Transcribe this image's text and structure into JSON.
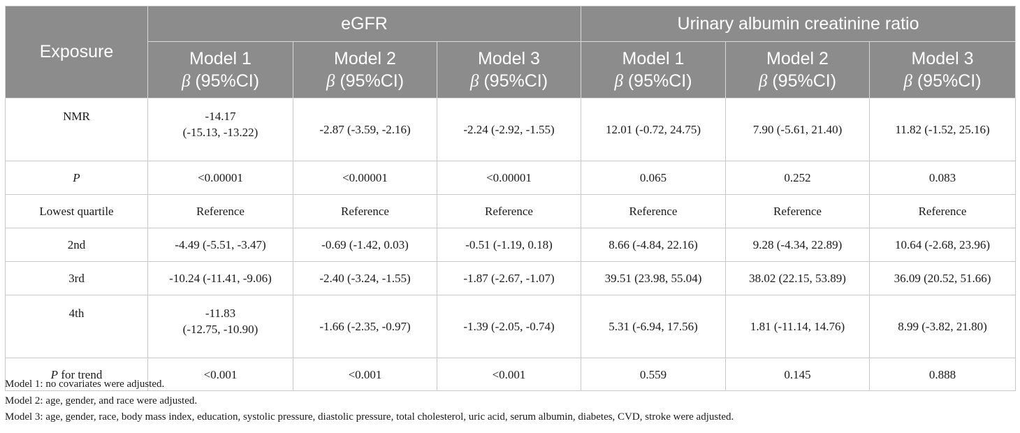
{
  "header": {
    "exposure_label": "Exposure",
    "groups": [
      "eGFR",
      "Urinary albumin creatinine ratio"
    ],
    "models": [
      {
        "name": "Model 1",
        "beta": "β",
        "ci": " (95%CI)"
      },
      {
        "name": "Model 2",
        "beta": "β",
        "ci": " (95%CI)"
      },
      {
        "name": "Model 3",
        "beta": "β",
        "ci": " (95%CI)"
      },
      {
        "name": "Model 1",
        "beta": "β",
        "ci": " (95%CI)"
      },
      {
        "name": "Model 2",
        "beta": "β",
        "ci": " (95%CI)"
      },
      {
        "name": "Model 3",
        "beta": "β",
        "ci": " (95%CI)"
      }
    ]
  },
  "rows": [
    {
      "label": "NMR",
      "cells": [
        "-14.17",
        "-2.87 (-3.59, -2.16)",
        "-2.24 (-2.92, -1.55)",
        "12.01 (-0.72, 24.75)",
        "7.90 (-5.61, 21.40)",
        "11.82 (-1.52, 25.16)"
      ],
      "cell0_line2": "(-15.13, -13.22)"
    },
    {
      "label": "P",
      "cells": [
        "<0.00001",
        "<0.00001",
        "<0.00001",
        "0.065",
        "0.252",
        "0.083"
      ]
    },
    {
      "label": "Lowest quartile",
      "cells": [
        "Reference",
        "Reference",
        "Reference",
        "Reference",
        "Reference",
        "Reference"
      ]
    },
    {
      "label": "2nd",
      "cells": [
        "-4.49 (-5.51, -3.47)",
        "-0.69 (-1.42, 0.03)",
        "-0.51 (-1.19, 0.18)",
        "8.66 (-4.84, 22.16)",
        "9.28 (-4.34, 22.89)",
        "10.64 (-2.68, 23.96)"
      ]
    },
    {
      "label": "3rd",
      "cells": [
        "-10.24 (-11.41, -9.06)",
        "-2.40 (-3.24, -1.55)",
        "-1.87 (-2.67, -1.07)",
        "39.51 (23.98, 55.04)",
        "38.02 (22.15, 53.89)",
        "36.09 (20.52, 51.66)"
      ]
    },
    {
      "label": "4th",
      "cells": [
        "-11.83",
        "-1.66 (-2.35, -0.97)",
        "-1.39 (-2.05, -0.74)",
        "5.31 (-6.94, 17.56)",
        "1.81 (-11.14, 14.76)",
        "8.99 (-3.82, 21.80)"
      ],
      "cell0_line2": "(-12.75, -10.90)"
    },
    {
      "label_italic": "P",
      "label_rest": " for trend",
      "cells": [
        "<0.001",
        "<0.001",
        "<0.001",
        "0.559",
        "0.145",
        "0.888"
      ]
    }
  ],
  "notes": [
    "Model 1: no covariates were adjusted.",
    "Model 2: age, gender, and race were adjusted.",
    "Model 3: age, gender, race, body mass index, education, systolic pressure, diastolic pressure, total cholesterol, uric acid, serum albumin, diabetes, CVD, stroke were adjusted."
  ]
}
